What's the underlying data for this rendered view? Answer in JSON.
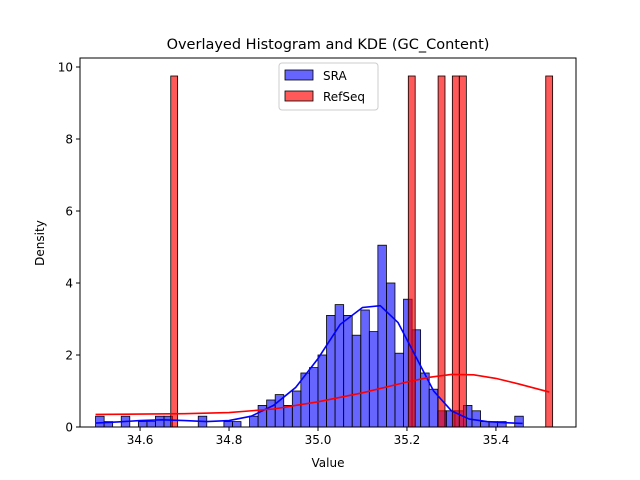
{
  "chart_data": {
    "type": "histogram",
    "title": "Overlayed Histogram and KDE (GC_Content)",
    "xlabel": "Value",
    "ylabel": "Density",
    "xlim": [
      34.465,
      35.58
    ],
    "ylim": [
      0,
      10.25
    ],
    "xticks": [
      {
        "value": 34.6,
        "label": "34.6"
      },
      {
        "value": 34.8,
        "label": "34.8"
      },
      {
        "value": 35.0,
        "label": "35.0"
      },
      {
        "value": 35.2,
        "label": "35.2"
      },
      {
        "value": 35.4,
        "label": "35.4"
      }
    ],
    "yticks": [
      {
        "value": 0,
        "label": "0"
      },
      {
        "value": 2,
        "label": "2"
      },
      {
        "value": 4,
        "label": "4"
      },
      {
        "value": 6,
        "label": "6"
      },
      {
        "value": 8,
        "label": "8"
      },
      {
        "value": 10,
        "label": "10"
      }
    ],
    "grid": false,
    "legend_position": "top-center",
    "series": [
      {
        "name": "SRA",
        "color": "#0000ff",
        "alpha": 0.6,
        "bin_width": 0.01922,
        "bins": [
          {
            "x0": 34.5,
            "h": 0.3
          },
          {
            "x0": 34.5192,
            "h": 0.15
          },
          {
            "x0": 34.5577,
            "h": 0.3
          },
          {
            "x0": 34.5962,
            "h": 0.15
          },
          {
            "x0": 34.6154,
            "h": 0.15
          },
          {
            "x0": 34.6346,
            "h": 0.3
          },
          {
            "x0": 34.6538,
            "h": 0.3
          },
          {
            "x0": 34.7308,
            "h": 0.3
          },
          {
            "x0": 34.7885,
            "h": 0.15
          },
          {
            "x0": 34.8077,
            "h": 0.15
          },
          {
            "x0": 34.8462,
            "h": 0.3
          },
          {
            "x0": 34.8654,
            "h": 0.6
          },
          {
            "x0": 34.8846,
            "h": 0.75
          },
          {
            "x0": 34.9038,
            "h": 0.9
          },
          {
            "x0": 34.9231,
            "h": 0.6
          },
          {
            "x0": 34.9423,
            "h": 1.0
          },
          {
            "x0": 34.9615,
            "h": 1.5
          },
          {
            "x0": 34.9808,
            "h": 1.65
          },
          {
            "x0": 35.0,
            "h": 2.0
          },
          {
            "x0": 35.0192,
            "h": 3.1
          },
          {
            "x0": 35.0385,
            "h": 3.4
          },
          {
            "x0": 35.0577,
            "h": 3.1
          },
          {
            "x0": 35.0769,
            "h": 2.55
          },
          {
            "x0": 35.0962,
            "h": 3.25
          },
          {
            "x0": 35.1154,
            "h": 2.65
          },
          {
            "x0": 35.1346,
            "h": 5.05
          },
          {
            "x0": 35.1538,
            "h": 4.0
          },
          {
            "x0": 35.1731,
            "h": 2.05
          },
          {
            "x0": 35.1923,
            "h": 3.55
          },
          {
            "x0": 35.2115,
            "h": 2.7
          },
          {
            "x0": 35.2308,
            "h": 1.5
          },
          {
            "x0": 35.25,
            "h": 1.05
          },
          {
            "x0": 35.2692,
            "h": 0.45
          },
          {
            "x0": 35.2885,
            "h": 0.45
          },
          {
            "x0": 35.3077,
            "h": 0.45
          },
          {
            "x0": 35.3269,
            "h": 0.6
          },
          {
            "x0": 35.3462,
            "h": 0.45
          },
          {
            "x0": 35.3654,
            "h": 0.15
          },
          {
            "x0": 35.3846,
            "h": 0.15
          },
          {
            "x0": 35.4038,
            "h": 0.15
          },
          {
            "x0": 35.4423,
            "h": 0.3
          }
        ],
        "kde": {
          "x": [
            34.5,
            34.55,
            34.6,
            34.65,
            34.7,
            34.75,
            34.8,
            34.85,
            34.9,
            34.95,
            35.0,
            35.05,
            35.1,
            35.14,
            35.18,
            35.22,
            35.26,
            35.3,
            35.34,
            35.38,
            35.42,
            35.46
          ],
          "y": [
            0.11,
            0.14,
            0.18,
            0.2,
            0.18,
            0.15,
            0.18,
            0.3,
            0.6,
            1.1,
            1.9,
            2.85,
            3.32,
            3.37,
            2.9,
            1.95,
            1.0,
            0.45,
            0.22,
            0.15,
            0.12,
            0.1
          ]
        }
      },
      {
        "name": "RefSeq",
        "color": "#ff0000",
        "alpha": 0.65,
        "bin_width": 0.0155,
        "bins": [
          {
            "x0": 34.669,
            "h": 9.75
          },
          {
            "x0": 35.203,
            "h": 9.75
          },
          {
            "x0": 35.27,
            "h": 9.75
          },
          {
            "x0": 35.302,
            "h": 9.75
          },
          {
            "x0": 35.318,
            "h": 9.75
          },
          {
            "x0": 35.512,
            "h": 9.75
          }
        ],
        "kde": {
          "x": [
            34.5,
            34.6,
            34.7,
            34.8,
            34.9,
            35.0,
            35.1,
            35.2,
            35.25,
            35.3,
            35.35,
            35.4,
            35.45,
            35.52
          ],
          "y": [
            0.35,
            0.36,
            0.37,
            0.4,
            0.5,
            0.7,
            0.95,
            1.25,
            1.38,
            1.46,
            1.45,
            1.35,
            1.2,
            0.97
          ]
        }
      }
    ]
  }
}
